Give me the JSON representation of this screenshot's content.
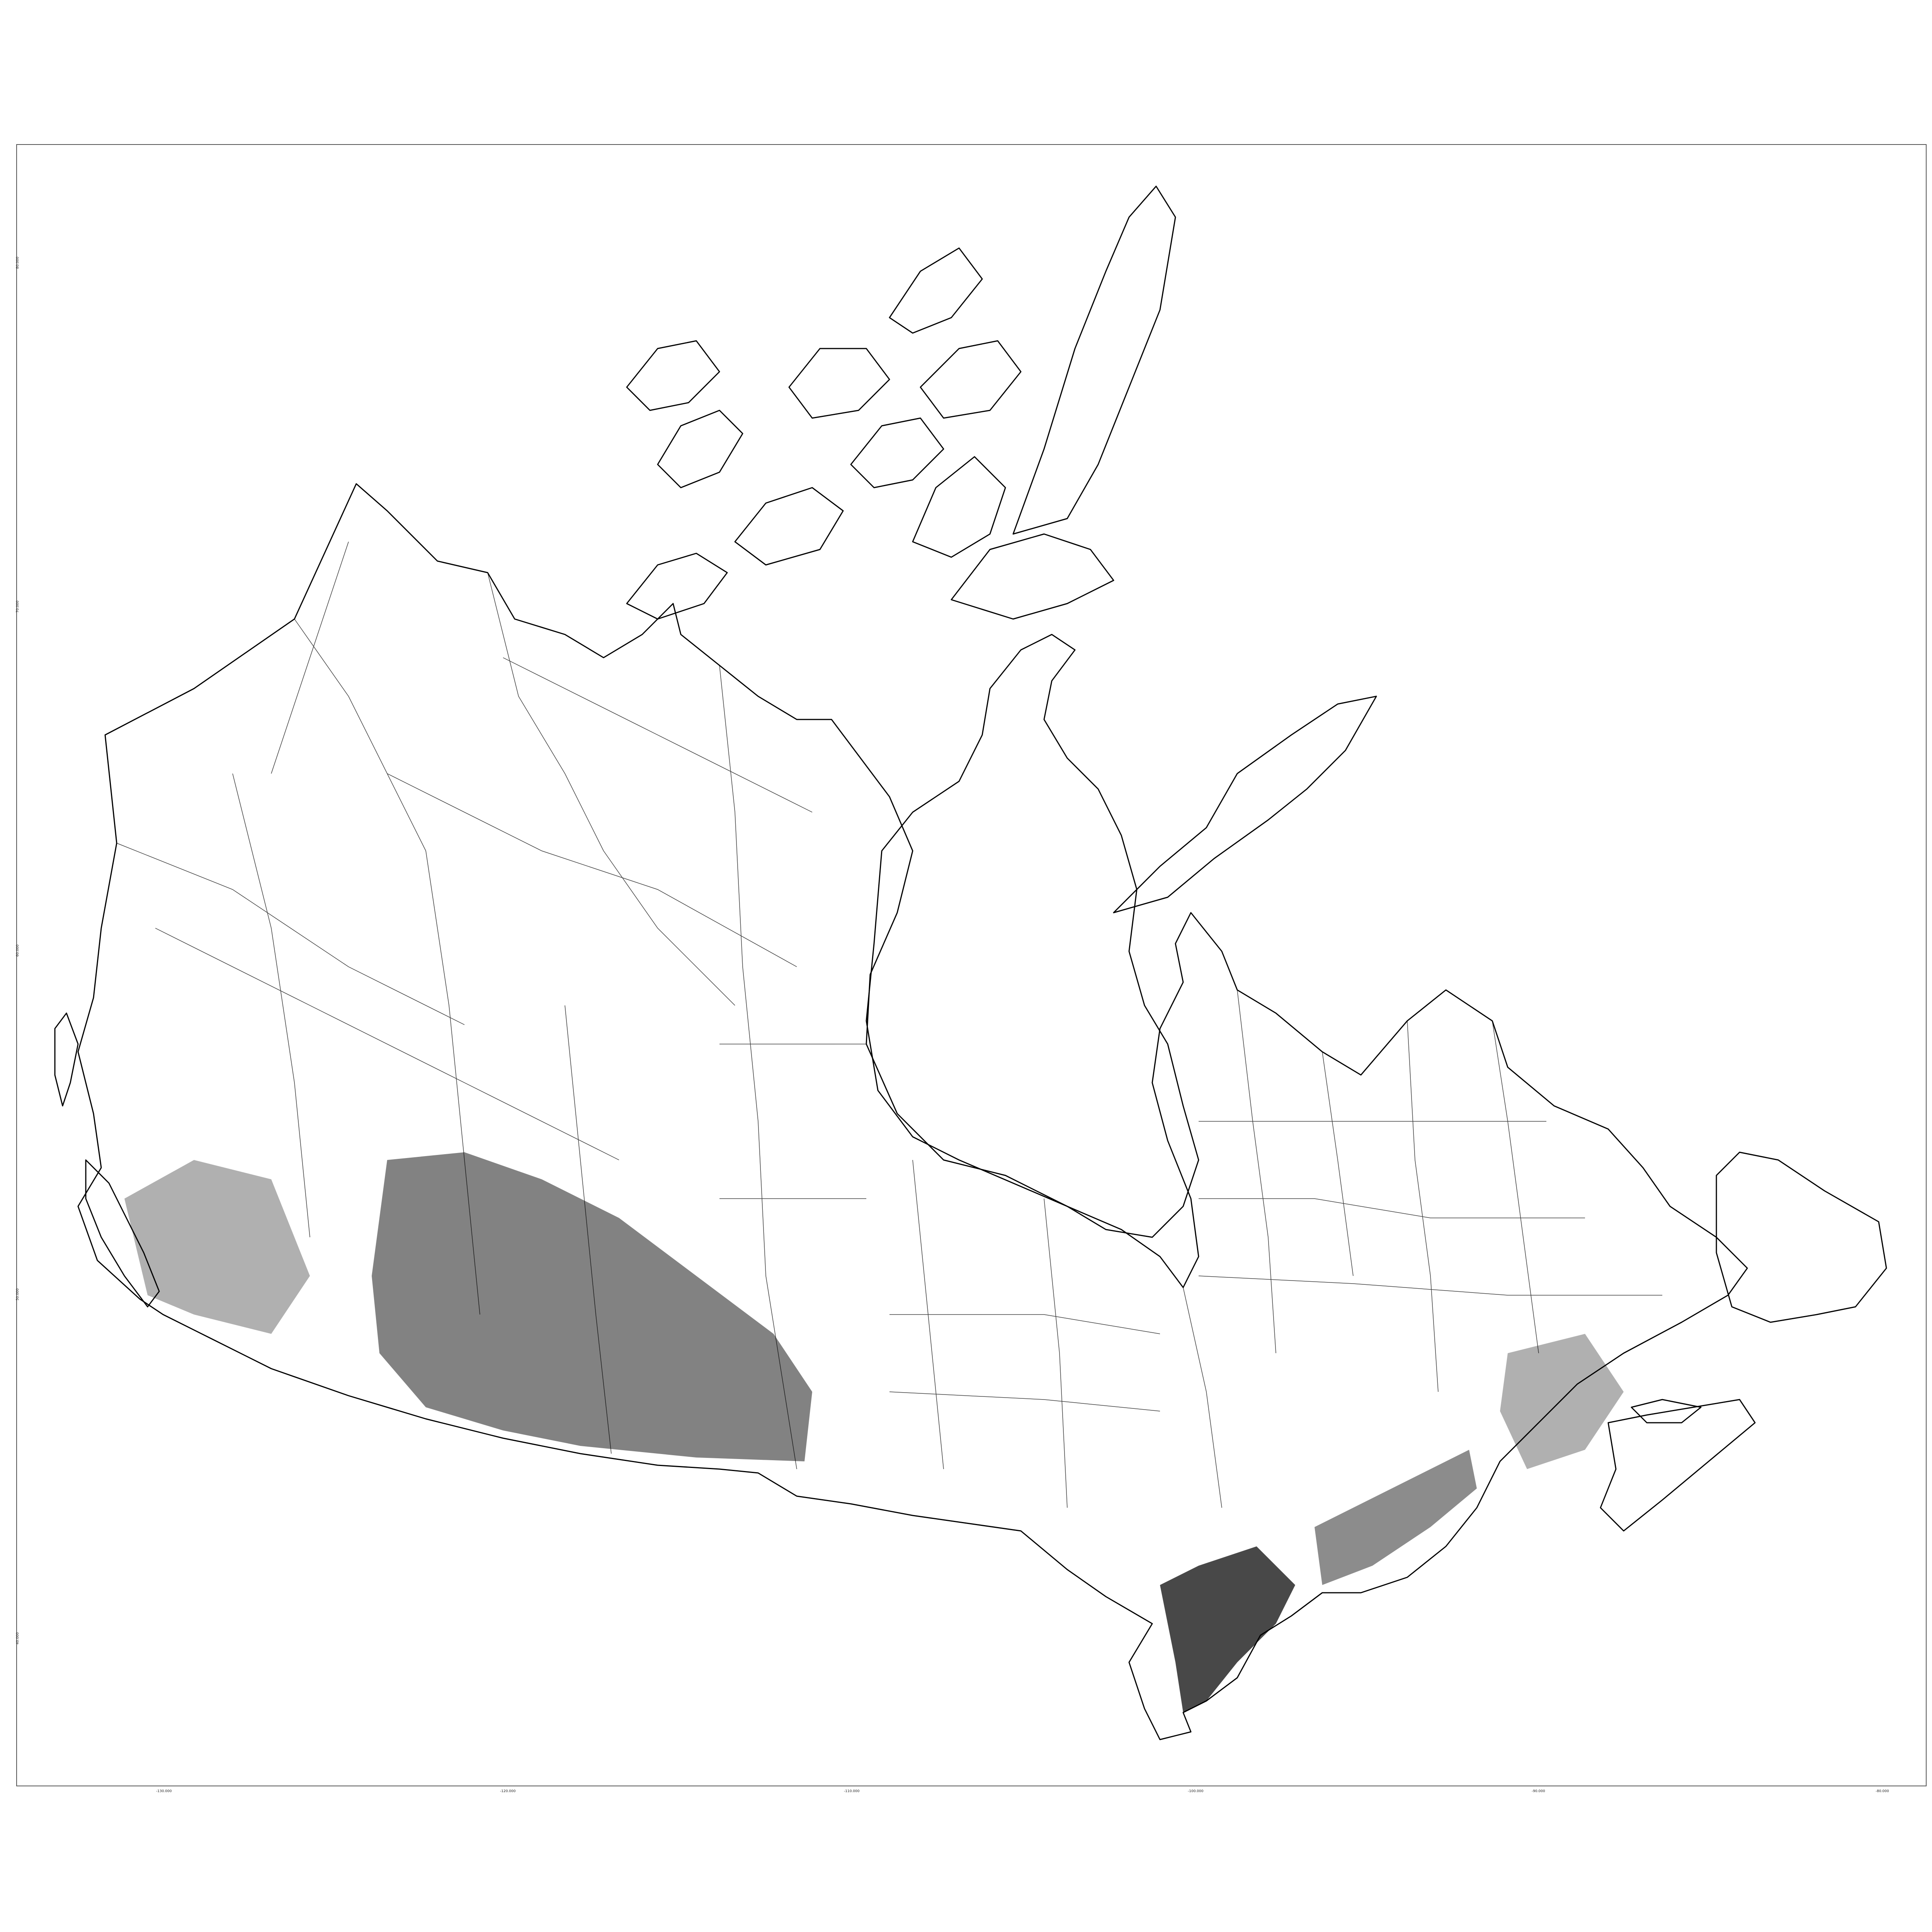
{
  "map": {
    "line_color": "#000000",
    "frame_color": "#555555",
    "background": "#ffffff",
    "x_ticks": [
      "-130.000",
      "-120.000",
      "-110.000",
      "-100.000",
      "-90.000",
      "-80.000"
    ],
    "y_ticks": [
      "80.000",
      "70.000",
      "60.000",
      "50.000",
      "40.000"
    ]
  }
}
